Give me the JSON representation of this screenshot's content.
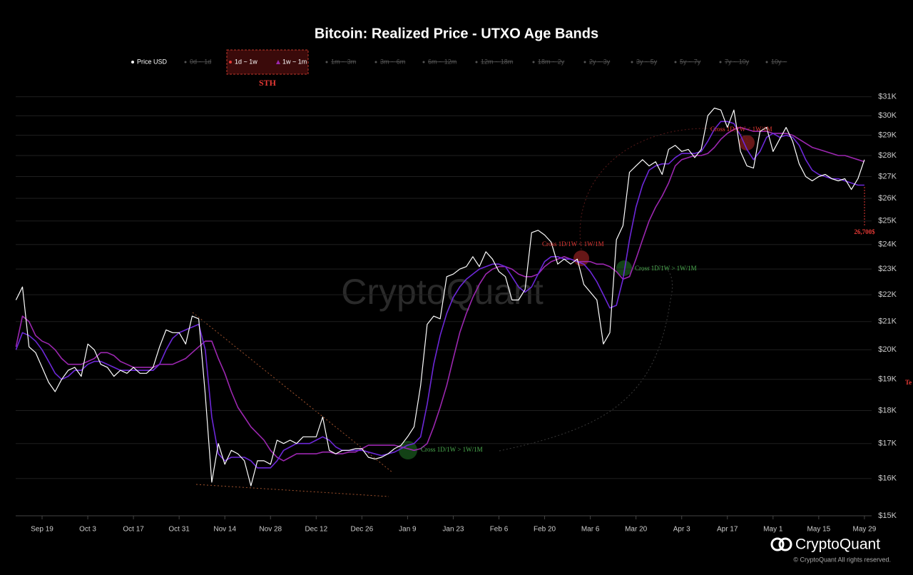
{
  "chart_data": {
    "type": "line",
    "title": "Bitcoin: Realized Price - UTXO Age Bands",
    "log_scale": true,
    "grid": true,
    "legend_position": "top",
    "inactive_legend": [
      "0d ~ 1d",
      "1m ~ 3m",
      "3m ~ 6m",
      "6m ~ 12m",
      "12m ~ 18m",
      "18m ~ 2y",
      "2y ~ 3y",
      "3y ~ 5y",
      "5y ~ 7y",
      "7y ~ 10y",
      "10y ~"
    ],
    "legend_group_label": "STH",
    "ylim": [
      15000,
      32000
    ],
    "yticks": [
      {
        "value": 15000,
        "label": "$15K"
      },
      {
        "value": 16000,
        "label": "$16K"
      },
      {
        "value": 17000,
        "label": "$17K"
      },
      {
        "value": 18000,
        "label": "$18K"
      },
      {
        "value": 19000,
        "label": "$19K"
      },
      {
        "value": 20000,
        "label": "$20K"
      },
      {
        "value": 21000,
        "label": "$21K"
      },
      {
        "value": 22000,
        "label": "$22K"
      },
      {
        "value": 23000,
        "label": "$23K"
      },
      {
        "value": 24000,
        "label": "$24K"
      },
      {
        "value": 25000,
        "label": "$25K"
      },
      {
        "value": 26000,
        "label": "$26K"
      },
      {
        "value": 27000,
        "label": "$27K"
      },
      {
        "value": 28000,
        "label": "$28K"
      },
      {
        "value": 29000,
        "label": "$29K"
      },
      {
        "value": 30000,
        "label": "$30K"
      },
      {
        "value": 31000,
        "label": "$31K"
      }
    ],
    "categories": [
      null,
      null,
      null,
      null,
      "Sep 19",
      null,
      null,
      null,
      null,
      null,
      null,
      "Oct 3",
      null,
      null,
      null,
      null,
      null,
      null,
      "Oct 17",
      null,
      null,
      null,
      null,
      null,
      null,
      "Oct 31",
      null,
      null,
      null,
      null,
      null,
      null,
      "Nov 14",
      null,
      null,
      null,
      null,
      null,
      null,
      "Nov 28",
      null,
      null,
      null,
      null,
      null,
      null,
      "Dec 12",
      null,
      null,
      null,
      null,
      null,
      null,
      "Dec 26",
      null,
      null,
      null,
      null,
      null,
      null,
      "Jan 9",
      null,
      null,
      null,
      null,
      null,
      null,
      "Jan 23",
      null,
      null,
      null,
      null,
      null,
      null,
      "Feb 6",
      null,
      null,
      null,
      null,
      null,
      null,
      "Feb 20",
      null,
      null,
      null,
      null,
      null,
      null,
      "Mar 6",
      null,
      null,
      null,
      null,
      null,
      null,
      "Mar 20",
      null,
      null,
      null,
      null,
      null,
      null,
      "Apr 3",
      null,
      null,
      null,
      null,
      null,
      null,
      "Apr 17",
      null,
      null,
      null,
      null,
      null,
      null,
      "May 1",
      null,
      null,
      null,
      null,
      null,
      null,
      "May 15",
      null,
      null,
      null,
      null,
      null,
      null,
      "May 29"
    ],
    "series": [
      {
        "name": "Price USD",
        "color": "#ffffff",
        "values": [
          21800,
          22300,
          20100,
          19900,
          19400,
          18900,
          18600,
          19000,
          19300,
          19400,
          19100,
          20200,
          20000,
          19500,
          19400,
          19100,
          19300,
          19200,
          19400,
          19200,
          19200,
          19400,
          20100,
          20700,
          20600,
          20600,
          20200,
          21200,
          21100,
          18500,
          15900,
          17000,
          16400,
          16800,
          16700,
          16500,
          15800,
          16500,
          16500,
          16400,
          17100,
          17000,
          17100,
          17000,
          17200,
          17200,
          17200,
          17800,
          16800,
          16700,
          16800,
          16800,
          16850,
          16850,
          16600,
          16550,
          16600,
          16700,
          16850,
          16950,
          17200,
          17500,
          18800,
          20900,
          21200,
          21100,
          22700,
          22800,
          23000,
          23100,
          23500,
          23100,
          23700,
          23400,
          22900,
          22700,
          21800,
          21800,
          22200,
          24500,
          24600,
          24400,
          24100,
          23200,
          23400,
          23200,
          23400,
          22400,
          22100,
          21800,
          20200,
          20600,
          24200,
          24800,
          27200,
          27500,
          27800,
          27500,
          27700,
          27100,
          28300,
          28500,
          28200,
          28300,
          27900,
          28300,
          30000,
          30400,
          30300,
          29400,
          30300,
          28200,
          27500,
          27400,
          29200,
          29400,
          28200,
          28800,
          29400,
          28700,
          27600,
          27000,
          26800,
          27000,
          27100,
          26900,
          26800,
          26900,
          26400,
          26900,
          27800
        ]
      },
      {
        "name": "1d ~ 1w",
        "color": "#6d28d9",
        "values": [
          20000,
          20600,
          20500,
          20300,
          20000,
          19600,
          19200,
          19000,
          19100,
          19300,
          19300,
          19500,
          19600,
          19600,
          19500,
          19400,
          19300,
          19300,
          19300,
          19300,
          19300,
          19300,
          19500,
          20000,
          20400,
          20600,
          20700,
          20800,
          20900,
          20000,
          17800,
          16700,
          16500,
          16600,
          16600,
          16600,
          16500,
          16300,
          16300,
          16300,
          16500,
          16800,
          16900,
          17000,
          17000,
          17000,
          17100,
          17200,
          17100,
          16900,
          16800,
          16800,
          16800,
          16800,
          16750,
          16700,
          16650,
          16700,
          16750,
          16850,
          16950,
          17000,
          17200,
          18200,
          19500,
          20500,
          21300,
          21900,
          22300,
          22600,
          22800,
          23000,
          23100,
          23200,
          23200,
          23100,
          22700,
          22300,
          22100,
          22300,
          22800,
          23300,
          23500,
          23500,
          23400,
          23400,
          23300,
          23200,
          22900,
          22500,
          22000,
          21500,
          21600,
          22600,
          24200,
          25600,
          26600,
          27300,
          27500,
          27600,
          27600,
          27900,
          28100,
          28100,
          28100,
          28200,
          28700,
          29300,
          29700,
          29700,
          29600,
          29000,
          28300,
          27800,
          28200,
          28900,
          29100,
          28900,
          29000,
          28900,
          28500,
          27800,
          27300,
          27100,
          27000,
          26900,
          26900,
          26800,
          26700,
          26600,
          26600
        ]
      },
      {
        "name": "1w ~ 1m",
        "color": "#9c27b0",
        "values": [
          20100,
          21200,
          21000,
          20500,
          20300,
          20200,
          20000,
          19700,
          19500,
          19500,
          19500,
          19600,
          19700,
          19900,
          19900,
          19800,
          19600,
          19500,
          19400,
          19400,
          19400,
          19400,
          19500,
          19500,
          19500,
          19600,
          19700,
          19900,
          20100,
          20300,
          20300,
          19700,
          19200,
          18600,
          18100,
          17800,
          17500,
          17300,
          17100,
          16800,
          16600,
          16500,
          16600,
          16700,
          16700,
          16700,
          16700,
          16750,
          16750,
          16700,
          16700,
          16750,
          16750,
          16850,
          16950,
          16950,
          16950,
          16950,
          16950,
          16900,
          16850,
          16800,
          16850,
          17000,
          17500,
          18100,
          18800,
          19700,
          20600,
          21300,
          21900,
          22400,
          22800,
          23000,
          23100,
          23100,
          23000,
          22800,
          22700,
          22700,
          22800,
          23100,
          23300,
          23400,
          23500,
          23400,
          23300,
          23300,
          23300,
          23200,
          23200,
          23100,
          22900,
          22600,
          22700,
          23400,
          24200,
          25000,
          25600,
          26100,
          26700,
          27500,
          27800,
          27900,
          28000,
          28000,
          28100,
          28400,
          28800,
          29100,
          29300,
          29400,
          29300,
          29200,
          29200,
          29200,
          29100,
          29100,
          29100,
          29000,
          28800,
          28600,
          28400,
          28300,
          28200,
          28100,
          28000,
          28000,
          27900,
          27800,
          27700
        ]
      }
    ],
    "annotations": [
      "Cross 1D/1W > 1W/1M",
      "Cross 1D/1W < 1W/1M",
      "Cross 1D/1W > 1W/1M",
      "Cross 1D/1W < 1W/1M"
    ],
    "price_label": "26,700$",
    "cut_label": "Te",
    "watermark": "CryptoQuant",
    "brand": "CryptoQuant",
    "copyright": "© CryptoQuant All rights reserved."
  }
}
